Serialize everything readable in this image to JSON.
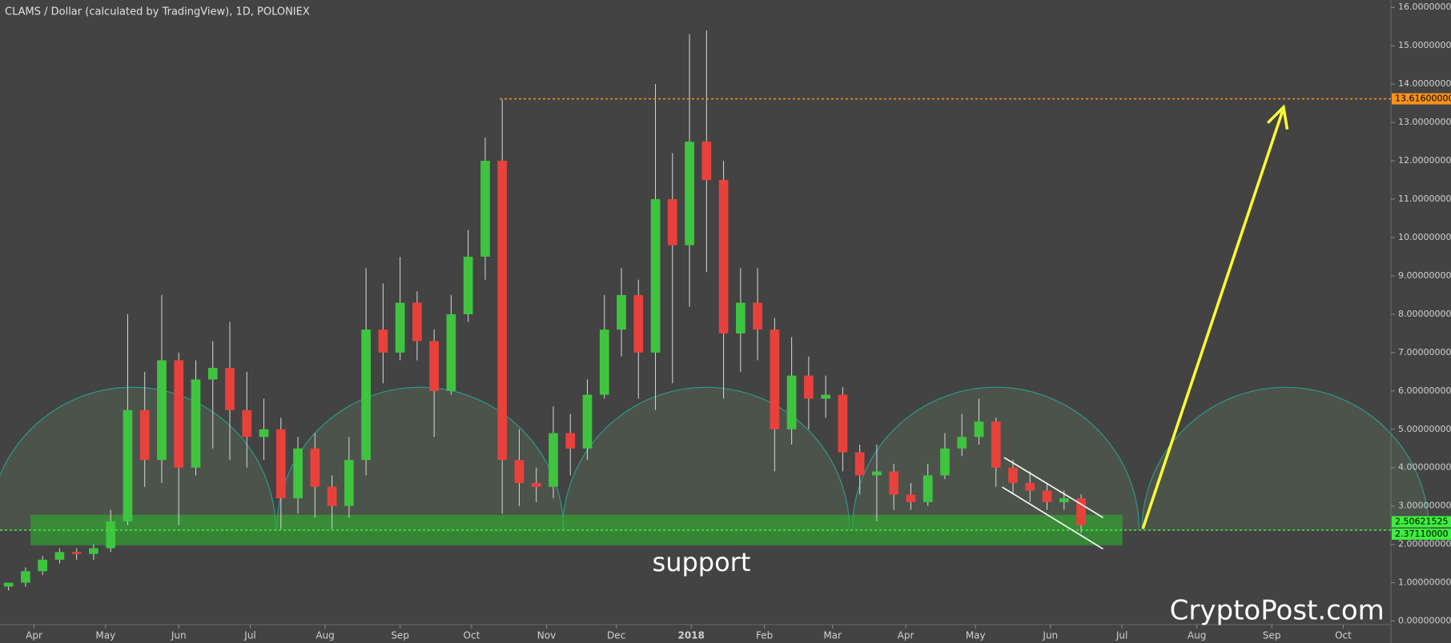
{
  "chart_data": {
    "type": "candlestick",
    "title": "CLAMS / Dollar (calculated by TradingView), 1D, POLONIEX",
    "x": [
      0,
      1,
      2,
      3,
      4,
      5,
      6,
      7,
      8,
      9,
      10,
      11,
      12,
      13,
      14,
      15,
      16,
      17,
      18,
      19,
      20,
      21,
      22,
      23,
      24,
      25,
      26,
      27,
      28,
      29,
      30,
      31,
      32,
      33,
      34,
      35,
      36,
      37,
      38,
      39,
      40,
      41,
      42,
      43,
      44,
      45,
      46,
      47,
      48,
      49,
      50,
      51,
      52,
      53,
      54,
      55,
      56,
      57,
      58,
      59,
      60,
      61,
      62,
      63
    ],
    "open": [
      0.9,
      1.0,
      1.3,
      1.6,
      1.8,
      1.75,
      1.9,
      2.6,
      5.5,
      4.2,
      6.8,
      4.0,
      6.3,
      6.6,
      5.5,
      4.8,
      5.0,
      3.2,
      4.5,
      3.5,
      3.0,
      4.2,
      7.6,
      7.0,
      8.3,
      7.3,
      6.0,
      8.0,
      9.5,
      12.0,
      4.2,
      3.6,
      3.5,
      4.9,
      4.5,
      5.9,
      7.6,
      8.5,
      7.0,
      11.0,
      9.8,
      12.5,
      11.5,
      7.5,
      8.3,
      7.6,
      5.0,
      6.4,
      5.8,
      5.9,
      4.4,
      3.8,
      3.9,
      3.3,
      3.1,
      3.8,
      4.5,
      4.8,
      5.2,
      4.0,
      3.6,
      3.4,
      3.1,
      3.2
    ],
    "high": [
      1.0,
      1.4,
      1.7,
      1.9,
      1.9,
      2.0,
      2.9,
      8.0,
      6.5,
      8.5,
      7.0,
      6.8,
      7.3,
      7.8,
      6.5,
      5.8,
      5.3,
      4.8,
      4.9,
      3.8,
      4.8,
      9.2,
      8.8,
      9.5,
      8.6,
      7.6,
      8.5,
      10.2,
      12.6,
      13.6,
      5.0,
      4.0,
      5.6,
      5.4,
      6.3,
      8.5,
      9.2,
      8.9,
      14.0,
      12.2,
      15.3,
      15.4,
      12.0,
      9.2,
      9.2,
      7.9,
      7.4,
      6.9,
      6.4,
      6.1,
      4.6,
      4.6,
      4.1,
      3.6,
      4.1,
      4.9,
      5.4,
      5.8,
      5.3,
      4.2,
      3.9,
      3.6,
      3.4,
      3.3
    ],
    "low": [
      0.8,
      0.9,
      1.2,
      1.5,
      1.6,
      1.6,
      1.8,
      2.5,
      3.5,
      3.6,
      2.5,
      3.8,
      4.5,
      4.2,
      4.0,
      4.2,
      2.4,
      2.8,
      2.7,
      2.4,
      2.7,
      3.8,
      6.2,
      6.8,
      6.8,
      4.8,
      5.9,
      7.8,
      8.9,
      2.8,
      3.0,
      3.1,
      3.2,
      3.8,
      4.2,
      5.8,
      6.9,
      5.8,
      5.5,
      6.2,
      8.2,
      9.1,
      5.8,
      6.5,
      6.8,
      3.9,
      4.6,
      5.0,
      5.3,
      3.9,
      3.3,
      2.6,
      2.9,
      2.9,
      3.0,
      3.7,
      4.3,
      4.6,
      3.5,
      3.3,
      3.1,
      2.9,
      2.9,
      2.3
    ],
    "close": [
      1.0,
      1.3,
      1.6,
      1.8,
      1.75,
      1.9,
      2.6,
      5.5,
      4.2,
      6.8,
      4.0,
      6.3,
      6.6,
      5.5,
      4.8,
      5.0,
      3.2,
      4.5,
      3.5,
      3.0,
      4.2,
      7.6,
      7.0,
      8.3,
      7.3,
      6.0,
      8.0,
      9.5,
      12.0,
      4.2,
      3.6,
      3.5,
      4.9,
      4.5,
      5.9,
      7.6,
      8.5,
      7.0,
      11.0,
      9.8,
      12.5,
      11.5,
      7.5,
      8.3,
      7.6,
      5.0,
      6.4,
      5.8,
      5.9,
      4.4,
      3.8,
      3.9,
      3.3,
      3.1,
      3.8,
      4.5,
      4.8,
      5.2,
      4.0,
      3.6,
      3.4,
      3.1,
      3.2,
      2.5
    ],
    "up_color": "#3fc43f",
    "down_color": "#e8413c",
    "wick_color": "#d8d8d8",
    "xlim": [
      -0.5,
      81.2
    ],
    "xticks": [
      {
        "value": 1.5,
        "label": "Apr"
      },
      {
        "value": 5.7,
        "label": "May"
      },
      {
        "value": 10.0,
        "label": "Jun"
      },
      {
        "value": 14.2,
        "label": "Jul"
      },
      {
        "value": 18.6,
        "label": "Aug"
      },
      {
        "value": 23.0,
        "label": "Sep"
      },
      {
        "value": 27.2,
        "label": "Oct"
      },
      {
        "value": 31.6,
        "label": "Nov"
      },
      {
        "value": 35.7,
        "label": "Dec"
      },
      {
        "value": 40.1,
        "label": "2018"
      },
      {
        "value": 44.4,
        "label": "Feb"
      },
      {
        "value": 48.4,
        "label": "Mar"
      },
      {
        "value": 52.7,
        "label": "Apr"
      },
      {
        "value": 56.8,
        "label": "May"
      },
      {
        "value": 61.2,
        "label": "Jun"
      },
      {
        "value": 65.4,
        "label": "Jul"
      },
      {
        "value": 69.8,
        "label": "Aug"
      },
      {
        "value": 74.2,
        "label": "Sep"
      },
      {
        "value": 78.4,
        "label": "Oct"
      }
    ],
    "ylim": [
      0,
      16
    ],
    "yticks": [
      {
        "value": 0,
        "label": "0.00000000"
      },
      {
        "value": 1,
        "label": "1.00000000"
      },
      {
        "value": 2,
        "label": "2.00000000"
      },
      {
        "value": 3,
        "label": "3.00000000"
      },
      {
        "value": 4,
        "label": "4.00000000"
      },
      {
        "value": 5,
        "label": "5.00000000"
      },
      {
        "value": 6,
        "label": "6.00000000"
      },
      {
        "value": 7,
        "label": "7.00000000"
      },
      {
        "value": 8,
        "label": "8.00000000"
      },
      {
        "value": 9,
        "label": "9.00000000"
      },
      {
        "value": 10,
        "label": "10.00000000"
      },
      {
        "value": 11,
        "label": "11.00000000"
      },
      {
        "value": 12,
        "label": "12.00000000"
      },
      {
        "value": 13,
        "label": "13.00000000"
      },
      {
        "value": 14,
        "label": "14.00000000"
      },
      {
        "value": 15,
        "label": "15.00000000"
      },
      {
        "value": 16,
        "label": "16.00000000"
      }
    ],
    "price_lines": [
      {
        "value": 13.616,
        "label": "13.61600000",
        "color": "#f7931a",
        "dashed": true
      },
      {
        "value": 2.50621525,
        "label": "2.50621525",
        "color": "#3cf03c",
        "dashed": false
      },
      {
        "value": 2.3711,
        "label": "2.37110000",
        "color": "#3cf03c",
        "dashed": true
      }
    ],
    "annotations": [
      "support",
      "CryptoPost.com"
    ]
  }
}
